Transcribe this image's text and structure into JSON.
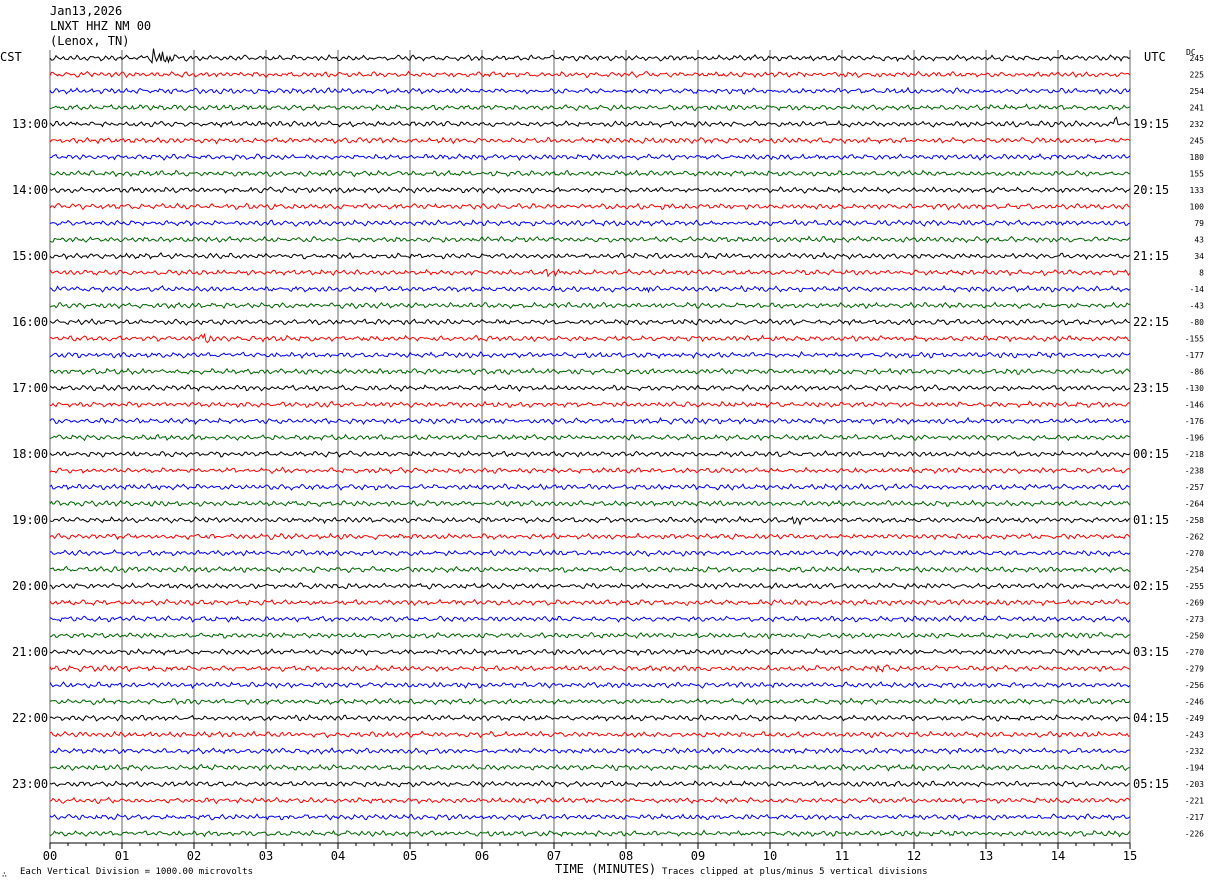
{
  "header": {
    "date": "Jan13,2026",
    "station": "LNXT HHZ NM 00",
    "location": "(Lenox, TN)"
  },
  "left_zone": "CST",
  "right_zone": "UTC",
  "dc_label": "DC",
  "footer": {
    "vertical_division": "Each Vertical Division = 1000.00 microvolts",
    "clip_note": "Traces clipped at plus/minus 5 vertical divisions",
    "logo": "∴"
  },
  "chart_data": {
    "type": "line",
    "xlabel": "TIME (MINUTES)",
    "xlim": [
      0,
      15
    ],
    "xticks": [
      "00",
      "01",
      "02",
      "03",
      "04",
      "05",
      "06",
      "07",
      "08",
      "09",
      "10",
      "11",
      "12",
      "13",
      "14",
      "15"
    ],
    "trace_colors": [
      "#000000",
      "#ff0000",
      "#0000ff",
      "#006400"
    ],
    "trace_count": 48,
    "left_hour_labels": [
      "13:00",
      "14:00",
      "15:00",
      "16:00",
      "17:00",
      "18:00",
      "19:00",
      "20:00",
      "21:00",
      "22:00",
      "23:00"
    ],
    "right_hour_labels": [
      "19:15",
      "20:15",
      "21:15",
      "22:15",
      "23:15",
      "00:15",
      "01:15",
      "02:15",
      "03:15",
      "04:15",
      "05:15"
    ],
    "dc_offsets": [
      245,
      225,
      254,
      241,
      232,
      245,
      180,
      155,
      133,
      100,
      79,
      43,
      34,
      8,
      -14,
      -43,
      -80,
      -155,
      -177,
      -86,
      -130,
      -146,
      -176,
      -196,
      -218,
      -238,
      -257,
      -264,
      -258,
      -262,
      -270,
      -254,
      -255,
      -269,
      -273,
      -250,
      -270,
      -279,
      -256,
      -246,
      -249,
      -243,
      -232,
      -194,
      -203,
      -221,
      -217,
      -226
    ],
    "events": [
      {
        "trace": 0,
        "minute": 1.4,
        "amplitude": 12,
        "duration": 0.6
      },
      {
        "trace": 4,
        "minute": 14.8,
        "amplitude": 9,
        "duration": 0.2
      },
      {
        "trace": 14,
        "minute": 8.2,
        "amplitude": 5,
        "duration": 0.5
      },
      {
        "trace": 13,
        "minute": 6.9,
        "amplitude": 6,
        "duration": 0.5
      },
      {
        "trace": 17,
        "minute": 2.1,
        "amplitude": 6,
        "duration": 0.4
      },
      {
        "trace": 28,
        "minute": 10.3,
        "amplitude": 6,
        "duration": 0.3
      },
      {
        "trace": 37,
        "minute": 11.5,
        "amplitude": 5,
        "duration": 0.3
      }
    ]
  }
}
